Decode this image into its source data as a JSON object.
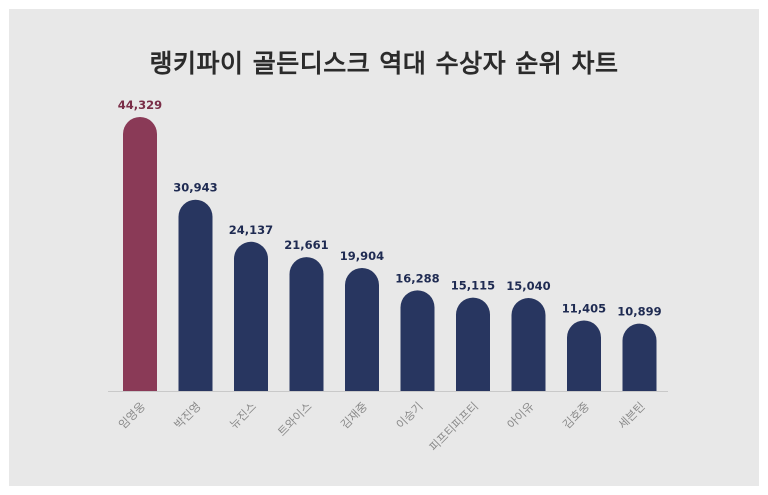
{
  "chart_data": {
    "type": "bar",
    "title": "랭키파이 골든디스크 역대 수상자 순위 차트",
    "categories": [
      "임영웅",
      "박진영",
      "뉴진스",
      "트와이스",
      "김재중",
      "이승기",
      "피프티피프티",
      "아이유",
      "김호중",
      "세븐틴"
    ],
    "values": [
      44329,
      30943,
      24137,
      21661,
      19904,
      16288,
      15115,
      15040,
      11405,
      10899
    ],
    "value_labels": [
      "44,329",
      "30,943",
      "24,137",
      "21,661",
      "19,904",
      "16,288",
      "15,115",
      "15,040",
      "11,405",
      "10,899"
    ],
    "xlabel": "",
    "ylabel": "",
    "ylim": [
      0,
      44329
    ],
    "grid": false,
    "legend": "none",
    "colors": {
      "highlight": "#8a3a57",
      "highlight_label": "#7a2e48",
      "bar": "#283660",
      "label": "#1f2b52",
      "baseline": "#c9c9c9",
      "background": "#e8e8e8"
    },
    "highlight_index": 0
  }
}
